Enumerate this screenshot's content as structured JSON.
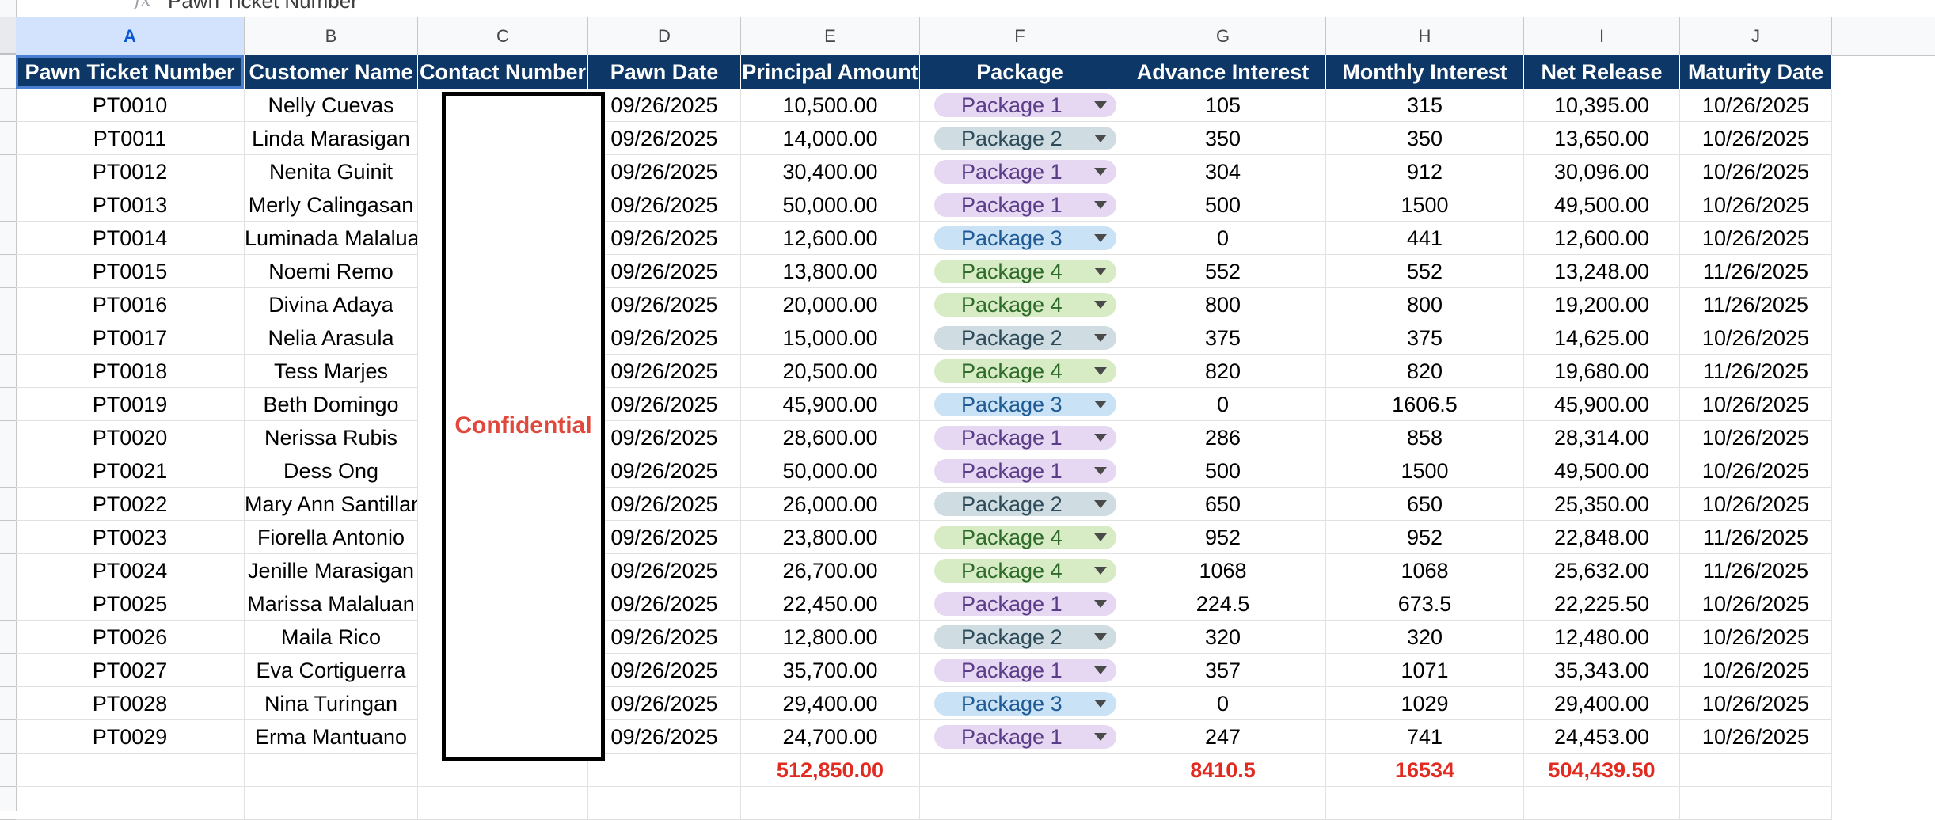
{
  "formula_bar": {
    "fx_symbol": "fx",
    "content": "Pawn Ticket Number"
  },
  "column_letters": [
    "A",
    "B",
    "C",
    "D",
    "E",
    "F",
    "G",
    "H",
    "I",
    "J"
  ],
  "headers": [
    "Pawn Ticket Number",
    "Customer Name",
    "Contact Number",
    "Pawn Date",
    "Principal Amount",
    "Package",
    "Advance Interest",
    "Monthly Interest",
    "Net Release",
    "Maturity Date"
  ],
  "confidential_label": "Confidential",
  "rows": [
    {
      "ticket": "PT0010",
      "name": "Nelly Cuevas",
      "date": "09/26/2025",
      "principal": "10,500.00",
      "package": "Package 1",
      "advance": "105",
      "monthly": "315",
      "net": "10,395.00",
      "maturity": "10/26/2025"
    },
    {
      "ticket": "PT0011",
      "name": "Linda Marasigan",
      "date": "09/26/2025",
      "principal": "14,000.00",
      "package": "Package 2",
      "advance": "350",
      "monthly": "350",
      "net": "13,650.00",
      "maturity": "10/26/2025"
    },
    {
      "ticket": "PT0012",
      "name": "Nenita Guinit",
      "date": "09/26/2025",
      "principal": "30,400.00",
      "package": "Package 1",
      "advance": "304",
      "monthly": "912",
      "net": "30,096.00",
      "maturity": "10/26/2025"
    },
    {
      "ticket": "PT0013",
      "name": "Merly Calingasan",
      "date": "09/26/2025",
      "principal": "50,000.00",
      "package": "Package 1",
      "advance": "500",
      "monthly": "1500",
      "net": "49,500.00",
      "maturity": "10/26/2025"
    },
    {
      "ticket": "PT0014",
      "name": "Luminada Malaluan",
      "date": "09/26/2025",
      "principal": "12,600.00",
      "package": "Package 3",
      "advance": "0",
      "monthly": "441",
      "net": "12,600.00",
      "maturity": "10/26/2025"
    },
    {
      "ticket": "PT0015",
      "name": "Noemi Remo",
      "date": "09/26/2025",
      "principal": "13,800.00",
      "package": "Package 4",
      "advance": "552",
      "monthly": "552",
      "net": "13,248.00",
      "maturity": "11/26/2025"
    },
    {
      "ticket": "PT0016",
      "name": "Divina Adaya",
      "date": "09/26/2025",
      "principal": "20,000.00",
      "package": "Package 4",
      "advance": "800",
      "monthly": "800",
      "net": "19,200.00",
      "maturity": "11/26/2025"
    },
    {
      "ticket": "PT0017",
      "name": "Nelia Arasula",
      "date": "09/26/2025",
      "principal": "15,000.00",
      "package": "Package 2",
      "advance": "375",
      "monthly": "375",
      "net": "14,625.00",
      "maturity": "10/26/2025"
    },
    {
      "ticket": "PT0018",
      "name": "Tess Marjes",
      "date": "09/26/2025",
      "principal": "20,500.00",
      "package": "Package 4",
      "advance": "820",
      "monthly": "820",
      "net": "19,680.00",
      "maturity": "11/26/2025"
    },
    {
      "ticket": "PT0019",
      "name": "Beth Domingo",
      "date": "09/26/2025",
      "principal": "45,900.00",
      "package": "Package 3",
      "advance": "0",
      "monthly": "1606.5",
      "net": "45,900.00",
      "maturity": "10/26/2025"
    },
    {
      "ticket": "PT0020",
      "name": "Nerissa Rubis",
      "date": "09/26/2025",
      "principal": "28,600.00",
      "package": "Package 1",
      "advance": "286",
      "monthly": "858",
      "net": "28,314.00",
      "maturity": "10/26/2025"
    },
    {
      "ticket": "PT0021",
      "name": "Dess Ong",
      "date": "09/26/2025",
      "principal": "50,000.00",
      "package": "Package 1",
      "advance": "500",
      "monthly": "1500",
      "net": "49,500.00",
      "maturity": "10/26/2025"
    },
    {
      "ticket": "PT0022",
      "name": "Mary Ann Santillan",
      "date": "09/26/2025",
      "principal": "26,000.00",
      "package": "Package 2",
      "advance": "650",
      "monthly": "650",
      "net": "25,350.00",
      "maturity": "10/26/2025"
    },
    {
      "ticket": "PT0023",
      "name": "Fiorella Antonio",
      "date": "09/26/2025",
      "principal": "23,800.00",
      "package": "Package 4",
      "advance": "952",
      "monthly": "952",
      "net": "22,848.00",
      "maturity": "11/26/2025"
    },
    {
      "ticket": "PT0024",
      "name": "Jenille Marasigan",
      "date": "09/26/2025",
      "principal": "26,700.00",
      "package": "Package 4",
      "advance": "1068",
      "monthly": "1068",
      "net": "25,632.00",
      "maturity": "11/26/2025"
    },
    {
      "ticket": "PT0025",
      "name": "Marissa Malaluan",
      "date": "09/26/2025",
      "principal": "22,450.00",
      "package": "Package 1",
      "advance": "224.5",
      "monthly": "673.5",
      "net": "22,225.50",
      "maturity": "10/26/2025"
    },
    {
      "ticket": "PT0026",
      "name": "Maila Rico",
      "date": "09/26/2025",
      "principal": "12,800.00",
      "package": "Package 2",
      "advance": "320",
      "monthly": "320",
      "net": "12,480.00",
      "maturity": "10/26/2025"
    },
    {
      "ticket": "PT0027",
      "name": "Eva Cortiguerra",
      "date": "09/26/2025",
      "principal": "35,700.00",
      "package": "Package 1",
      "advance": "357",
      "monthly": "1071",
      "net": "35,343.00",
      "maturity": "10/26/2025"
    },
    {
      "ticket": "PT0028",
      "name": "Nina Turingan",
      "date": "09/26/2025",
      "principal": "29,400.00",
      "package": "Package 3",
      "advance": "0",
      "monthly": "1029",
      "net": "29,400.00",
      "maturity": "10/26/2025"
    },
    {
      "ticket": "PT0029",
      "name": "Erma Mantuano",
      "date": "09/26/2025",
      "principal": "24,700.00",
      "package": "Package 1",
      "advance": "247",
      "monthly": "741",
      "net": "24,453.00",
      "maturity": "10/26/2025"
    }
  ],
  "totals": {
    "principal": "512,850.00",
    "advance": "8410.5",
    "monthly": "16534",
    "net": "504,439.50"
  },
  "package_styles": {
    "Package 1": {
      "bg": "#e6d8f2",
      "fg": "#5b3c88"
    },
    "Package 2": {
      "bg": "#cfdde3",
      "fg": "#2d4a58"
    },
    "Package 3": {
      "bg": "#c9e2f5",
      "fg": "#1f5a95"
    },
    "Package 4": {
      "bg": "#d7ecc4",
      "fg": "#2e6b2a"
    }
  },
  "colors": {
    "header_bg": "#0c3766",
    "header_fg": "#ffffff",
    "totals_fg": "#e22b20",
    "confidential_fg": "#e0483c",
    "selected_col": "#d3e3fd"
  }
}
